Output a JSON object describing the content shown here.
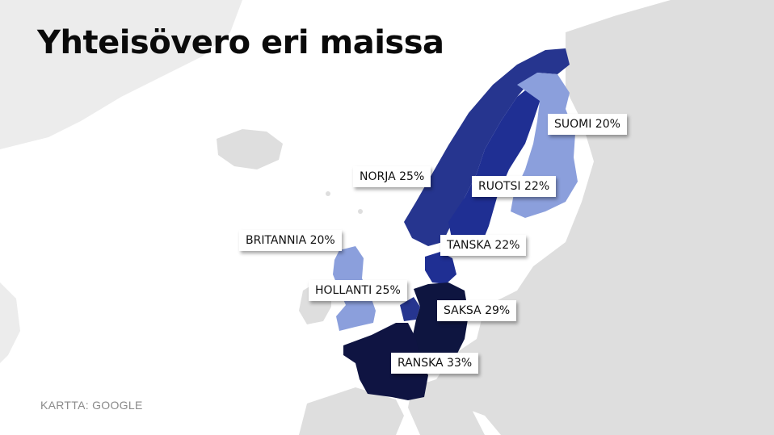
{
  "title": "Yhteisövero eri maissa",
  "source": "KARTTA: GOOGLE",
  "colors": {
    "background_land": "#d9d9d9",
    "sea": "#ffffff",
    "rate_20": "#8b9fdc",
    "rate_22": "#1f2f93",
    "rate_25": "#26358f",
    "rate_29": "#0e1540",
    "rate_33": "#0f1442"
  },
  "countries": [
    {
      "id": "suomi",
      "label": "SUOMI 20%"
    },
    {
      "id": "ruotsi",
      "label": "RUOTSI 22%"
    },
    {
      "id": "norja",
      "label": "NORJA 25%"
    },
    {
      "id": "tanska",
      "label": "TANSKA 22%"
    },
    {
      "id": "britannia",
      "label": "BRITANNIA 20%"
    },
    {
      "id": "hollanti",
      "label": "HOLLANTI 25%"
    },
    {
      "id": "saksa",
      "label": "SAKSA 29%"
    },
    {
      "id": "ranska",
      "label": "RANSKA 33%"
    }
  ]
}
